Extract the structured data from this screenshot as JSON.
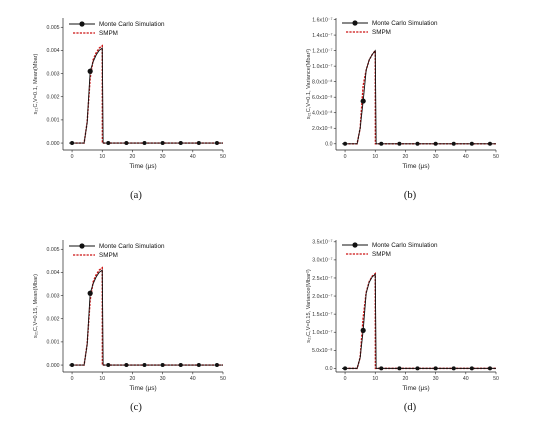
{
  "chart_data": [
    {
      "type": "line",
      "caption": "(a)",
      "ylabel": "s₂₁C,V=0.1, Mean(Mbar)",
      "xlabel": "Time (μs)",
      "xticks": [
        "0",
        "10",
        "20",
        "30",
        "40",
        "50"
      ],
      "yticks": [
        "0.000",
        "0.001",
        "0.002",
        "0.003",
        "0.004",
        "0.005"
      ],
      "xlim": [
        -3,
        50
      ],
      "ylim": [
        -0.0003,
        0.0054
      ],
      "legend": [
        "Monte Carlo Simulation",
        "SMPM"
      ],
      "series": [
        {
          "name": "Monte Carlo Simulation",
          "x": [
            0,
            6,
            10,
            12,
            18,
            24,
            30,
            36,
            42,
            48
          ],
          "y": [
            0,
            0.0031,
            0.0041,
            0,
            0,
            0,
            0,
            0,
            0,
            0
          ]
        },
        {
          "name": "SMPM",
          "x": [
            0,
            4,
            5,
            6,
            7,
            8,
            9,
            10,
            10.05,
            50
          ],
          "y": [
            0,
            0,
            0.0009,
            0.0028,
            0.0036,
            0.0039,
            0.0041,
            0.0042,
            0,
            0
          ]
        }
      ]
    },
    {
      "type": "line",
      "caption": "(b)",
      "ylabel": "s₂₁C,V=0.1, Variance(Mbar²)",
      "xlabel": "Time (μs)",
      "xticks": [
        "0",
        "10",
        "20",
        "30",
        "40",
        "50"
      ],
      "yticks": [
        "0.0",
        "2.0x10⁻⁸",
        "4.0x10⁻⁸",
        "6.0x10⁻⁸",
        "8.0x10⁻⁸",
        "1.0x10⁻⁷",
        "1.2x10⁻⁷",
        "1.4x10⁻⁷",
        "1.6x10⁻⁷"
      ],
      "xlim": [
        -3,
        50
      ],
      "ylim": [
        -8e-09,
        1.62e-07
      ],
      "legend": [
        "Monte Carlo Simulation",
        "SMPM"
      ],
      "series": [
        {
          "name": "Monte Carlo Simulation",
          "x": [
            0,
            6,
            10,
            12,
            18,
            24,
            30,
            36,
            42,
            48
          ],
          "y": [
            0,
            5.5e-08,
            1.2e-07,
            0,
            0,
            0,
            0,
            0,
            0,
            0
          ]
        },
        {
          "name": "SMPM",
          "x": [
            0,
            4,
            5,
            6,
            7,
            8,
            9,
            10,
            10.05,
            50
          ],
          "y": [
            0,
            0,
            2e-08,
            7.5e-08,
            9.5e-08,
            1.08e-07,
            1.15e-07,
            1.2e-07,
            0,
            0
          ]
        }
      ]
    },
    {
      "type": "line",
      "caption": "(c)",
      "ylabel": "s₂₁C,V=0.15, Mean(Mbar)",
      "xlabel": "Time (μs)",
      "xticks": [
        "0",
        "10",
        "20",
        "30",
        "40",
        "50"
      ],
      "yticks": [
        "0.000",
        "0.001",
        "0.002",
        "0.003",
        "0.004",
        "0.005"
      ],
      "xlim": [
        -3,
        50
      ],
      "ylim": [
        -0.0003,
        0.0054
      ],
      "legend": [
        "Monte Carlo Simulation",
        "SMPM"
      ],
      "series": [
        {
          "name": "Monte Carlo Simulation",
          "x": [
            0,
            6,
            10,
            12,
            18,
            24,
            30,
            36,
            42,
            48
          ],
          "y": [
            0,
            0.0031,
            0.0041,
            0,
            0,
            0,
            0,
            0,
            0,
            0
          ]
        },
        {
          "name": "SMPM",
          "x": [
            0,
            4,
            5,
            6,
            7,
            8,
            9,
            10,
            10.05,
            50
          ],
          "y": [
            0,
            0,
            0.0009,
            0.0028,
            0.0036,
            0.0039,
            0.0041,
            0.0042,
            0,
            0
          ]
        }
      ]
    },
    {
      "type": "line",
      "caption": "(d)",
      "ylabel": "s₂₁C,V=0.15, Variance(Mbar²)",
      "xlabel": "Time (μs)",
      "xticks": [
        "0",
        "10",
        "20",
        "30",
        "40",
        "50"
      ],
      "yticks": [
        "0.0",
        "5.0x10⁻⁸",
        "1.0x10⁻⁷",
        "1.5x10⁻⁷",
        "2.0x10⁻⁷",
        "2.5x10⁻⁷",
        "3.0x10⁻⁷",
        "3.5x10⁻⁷"
      ],
      "xlim": [
        -3,
        50
      ],
      "ylim": [
        -1e-08,
        3.55e-07
      ],
      "legend": [
        "Monte Carlo Simulation",
        "SMPM"
      ],
      "series": [
        {
          "name": "Monte Carlo Simulation",
          "x": [
            0,
            6,
            10,
            12,
            18,
            24,
            30,
            36,
            42,
            48
          ],
          "y": [
            0,
            1.05e-07,
            2.6e-07,
            0,
            0,
            0,
            0,
            0,
            0,
            0
          ]
        },
        {
          "name": "SMPM",
          "x": [
            0,
            4,
            5,
            6,
            7,
            8,
            9,
            10,
            10.05,
            50
          ],
          "y": [
            0,
            0,
            3e-08,
            1.4e-07,
            2.1e-07,
            2.4e-07,
            2.55e-07,
            2.62e-07,
            0,
            0
          ]
        }
      ]
    }
  ],
  "colors": {
    "monte_carlo": "#111111",
    "smpm": "#cc1111"
  }
}
